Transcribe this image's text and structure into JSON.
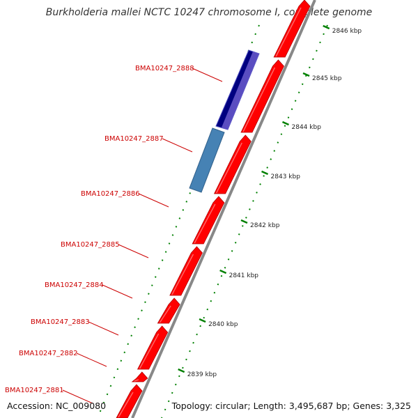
{
  "title": "Burkholderia mallei NCTC 10247 chromosome I, complete genome",
  "accession": "Accession: NC_009080",
  "topology": "Topology: circular; Length: 3,495,687 bp; Genes: 3,325",
  "ticks": [
    "2846 kbp",
    "2845 kbp",
    "2844 kbp",
    "2843 kbp",
    "2842 kbp",
    "2841 kbp",
    "2840 kbp",
    "2839 kbp"
  ],
  "genes": [
    "BMA10247_2888",
    "BMA10247_2887",
    "BMA10247_2886",
    "BMA10247_2885",
    "BMA10247_2884",
    "BMA10247_2883",
    "BMA10247_2882",
    "BMA10247_2881"
  ],
  "colors": {
    "cds": "#ff0000",
    "feature_dark": "#000080",
    "feature_light": "#4682b4",
    "tick": "#008000",
    "label": "#cc0000",
    "backbone": "#888888"
  }
}
